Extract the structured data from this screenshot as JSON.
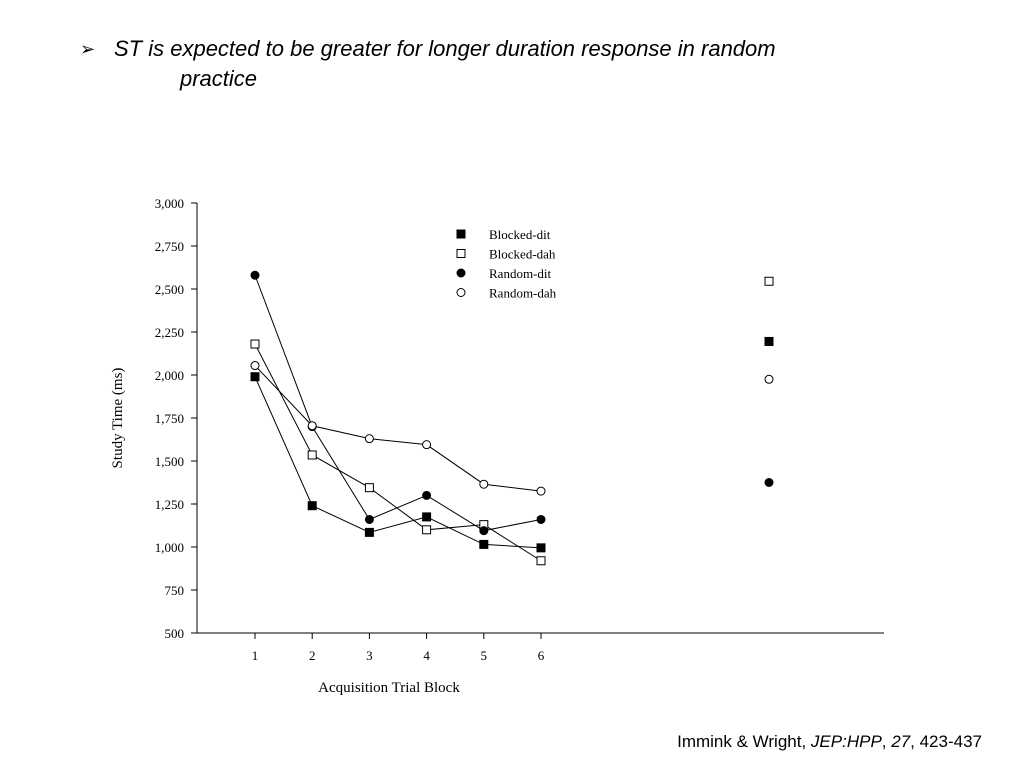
{
  "slide": {
    "bullet_symbol": "➢",
    "bullet_line1": "ST is expected to be greater for longer duration response in random",
    "bullet_line2": "practice",
    "citation_authors": "Immink & Wright, ",
    "citation_journal": "JEP:HPP",
    "citation_sep1": ", ",
    "citation_volume": "27",
    "citation_pages": ", 423-437"
  },
  "chart_data": {
    "type": "line",
    "xlabel": "Acquisition Trial Block",
    "ylabel": "Study Time (ms)",
    "categories": [
      "1",
      "2",
      "3",
      "4",
      "5",
      "6"
    ],
    "ylim": [
      500,
      3000
    ],
    "yticks": [
      500,
      750,
      1000,
      1250,
      1500,
      1750,
      2000,
      2250,
      2500,
      2750,
      3000
    ],
    "ytick_labels": [
      "500",
      "750",
      "1,000",
      "1,250",
      "1,500",
      "1,750",
      "2,000",
      "2,250",
      "2,500",
      "2,750",
      "3,000"
    ],
    "legend_position": "top-center",
    "grid": false,
    "series": [
      {
        "name": "Blocked-dit",
        "marker": "filled-square",
        "values": [
          1990,
          1240,
          1085,
          1175,
          1015,
          995
        ],
        "retention": 2195
      },
      {
        "name": "Blocked-dah",
        "marker": "open-square",
        "values": [
          2180,
          1535,
          1345,
          1100,
          1130,
          920
        ],
        "retention": 2545
      },
      {
        "name": "Random-dit",
        "marker": "filled-circle",
        "values": [
          2580,
          1700,
          1160,
          1300,
          1095,
          1160
        ],
        "retention": 1375
      },
      {
        "name": "Random-dah",
        "marker": "open-circle",
        "values": [
          2055,
          1705,
          1630,
          1595,
          1365,
          1325
        ],
        "retention": 1975
      }
    ]
  }
}
